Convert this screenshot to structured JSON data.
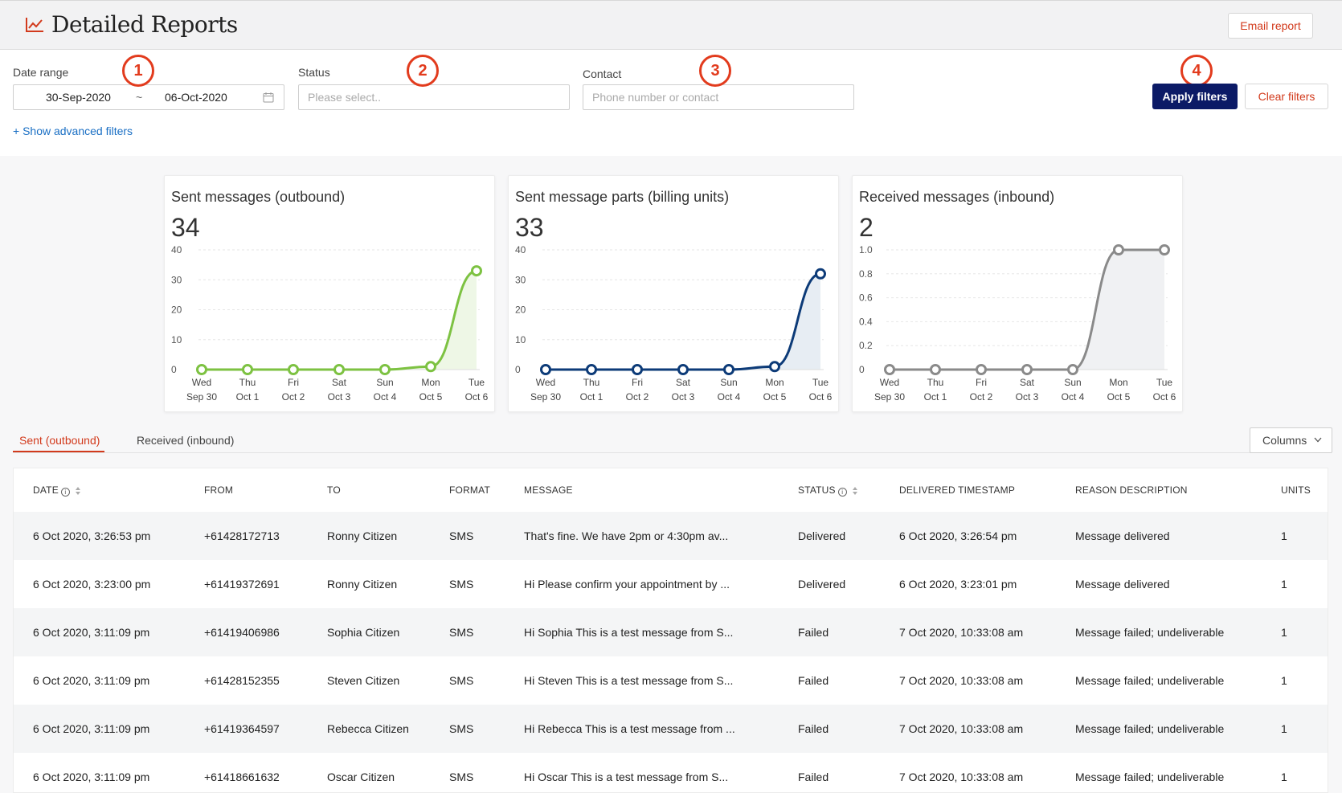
{
  "header": {
    "title": "Detailed Reports",
    "email_button": "Email report",
    "title_icon": "line-chart-icon"
  },
  "filters": {
    "date_range_label": "Date range",
    "date_from": "30-Sep-2020",
    "date_separator": "~",
    "date_to": "06-Oct-2020",
    "status_label": "Status",
    "status_placeholder": "Please select..",
    "contact_label": "Contact",
    "contact_placeholder": "Phone number or contact",
    "apply_button": "Apply filters",
    "clear_button": "Clear filters",
    "advanced_link": "+ Show advanced filters"
  },
  "annotations": [
    "1",
    "2",
    "3",
    "4"
  ],
  "colors": {
    "accent": "#d23a1c",
    "primary": "#0b1a66",
    "link": "#1a6fc4",
    "annotation": "#e23b1d"
  },
  "chart_data": [
    {
      "type": "area",
      "title": "Sent messages (outbound)",
      "total": "34",
      "x_day": [
        "Wed",
        "Thu",
        "Fri",
        "Sat",
        "Sun",
        "Mon",
        "Tue"
      ],
      "x_date": [
        "Sep 30",
        "Oct 1",
        "Oct 2",
        "Oct 3",
        "Oct 4",
        "Oct 5",
        "Oct 6"
      ],
      "values": [
        0,
        0,
        0,
        0,
        0,
        1,
        33
      ],
      "ylim": [
        0,
        40
      ],
      "yticks": [
        "0",
        "10",
        "20",
        "30",
        "40"
      ],
      "line_color": "#7dc242",
      "fill_color": "#eef7e6",
      "grid": true
    },
    {
      "type": "area",
      "title": "Sent message parts (billing units)",
      "total": "33",
      "x_day": [
        "Wed",
        "Thu",
        "Fri",
        "Sat",
        "Sun",
        "Mon",
        "Tue"
      ],
      "x_date": [
        "Sep 30",
        "Oct 1",
        "Oct 2",
        "Oct 3",
        "Oct 4",
        "Oct 5",
        "Oct 6"
      ],
      "values": [
        0,
        0,
        0,
        0,
        0,
        1,
        32
      ],
      "ylim": [
        0,
        40
      ],
      "yticks": [
        "0",
        "10",
        "20",
        "30",
        "40"
      ],
      "line_color": "#0d3b78",
      "fill_color": "#e7edf3",
      "grid": true
    },
    {
      "type": "area",
      "title": "Received messages (inbound)",
      "total": "2",
      "x_day": [
        "Wed",
        "Thu",
        "Fri",
        "Sat",
        "Sun",
        "Mon",
        "Tue"
      ],
      "x_date": [
        "Sep 30",
        "Oct 1",
        "Oct 2",
        "Oct 3",
        "Oct 4",
        "Oct 5",
        "Oct 6"
      ],
      "values": [
        0,
        0,
        0,
        0,
        0,
        1,
        1
      ],
      "ylim": [
        0,
        1
      ],
      "yticks": [
        "0",
        "0.2",
        "0.4",
        "0.6",
        "0.8",
        "1.0"
      ],
      "line_color": "#8a8a8a",
      "fill_color": "#f0f1f3",
      "grid": true
    }
  ],
  "tabs": [
    {
      "label": "Sent (outbound)",
      "active": true
    },
    {
      "label": "Received (inbound)",
      "active": false
    }
  ],
  "columns_button": "Columns",
  "table": {
    "headers": [
      "DATE",
      "FROM",
      "TO",
      "FORMAT",
      "MESSAGE",
      "STATUS",
      "DELIVERED TIMESTAMP",
      "REASON DESCRIPTION",
      "UNITS"
    ],
    "rows": [
      [
        "6 Oct 2020, 3:26:53 pm",
        "+61428172713",
        "Ronny Citizen",
        "SMS",
        "That's fine. We have 2pm or 4:30pm av...",
        "Delivered",
        "6 Oct 2020, 3:26:54 pm",
        "Message delivered",
        "1"
      ],
      [
        "6 Oct 2020, 3:23:00 pm",
        "+61419372691",
        "Ronny Citizen",
        "SMS",
        "Hi Please confirm your appointment by ...",
        "Delivered",
        "6 Oct 2020, 3:23:01 pm",
        "Message delivered",
        "1"
      ],
      [
        "6 Oct 2020, 3:11:09 pm",
        "+61419406986",
        "Sophia Citizen",
        "SMS",
        "Hi Sophia This is a test message from S...",
        "Failed",
        "7 Oct 2020, 10:33:08 am",
        "Message failed; undeliverable",
        "1"
      ],
      [
        "6 Oct 2020, 3:11:09 pm",
        "+61428152355",
        "Steven Citizen",
        "SMS",
        "Hi Steven This is a test message from S...",
        "Failed",
        "7 Oct 2020, 10:33:08 am",
        "Message failed; undeliverable",
        "1"
      ],
      [
        "6 Oct 2020, 3:11:09 pm",
        "+61419364597",
        "Rebecca Citizen",
        "SMS",
        "Hi Rebecca This is a test message from ...",
        "Failed",
        "7 Oct 2020, 10:33:08 am",
        "Message failed; undeliverable",
        "1"
      ],
      [
        "6 Oct 2020, 3:11:09 pm",
        "+61418661632",
        "Oscar Citizen",
        "SMS",
        "Hi Oscar This is a test message from S...",
        "Failed",
        "7 Oct 2020, 10:33:08 am",
        "Message failed; undeliverable",
        "1"
      ]
    ]
  }
}
